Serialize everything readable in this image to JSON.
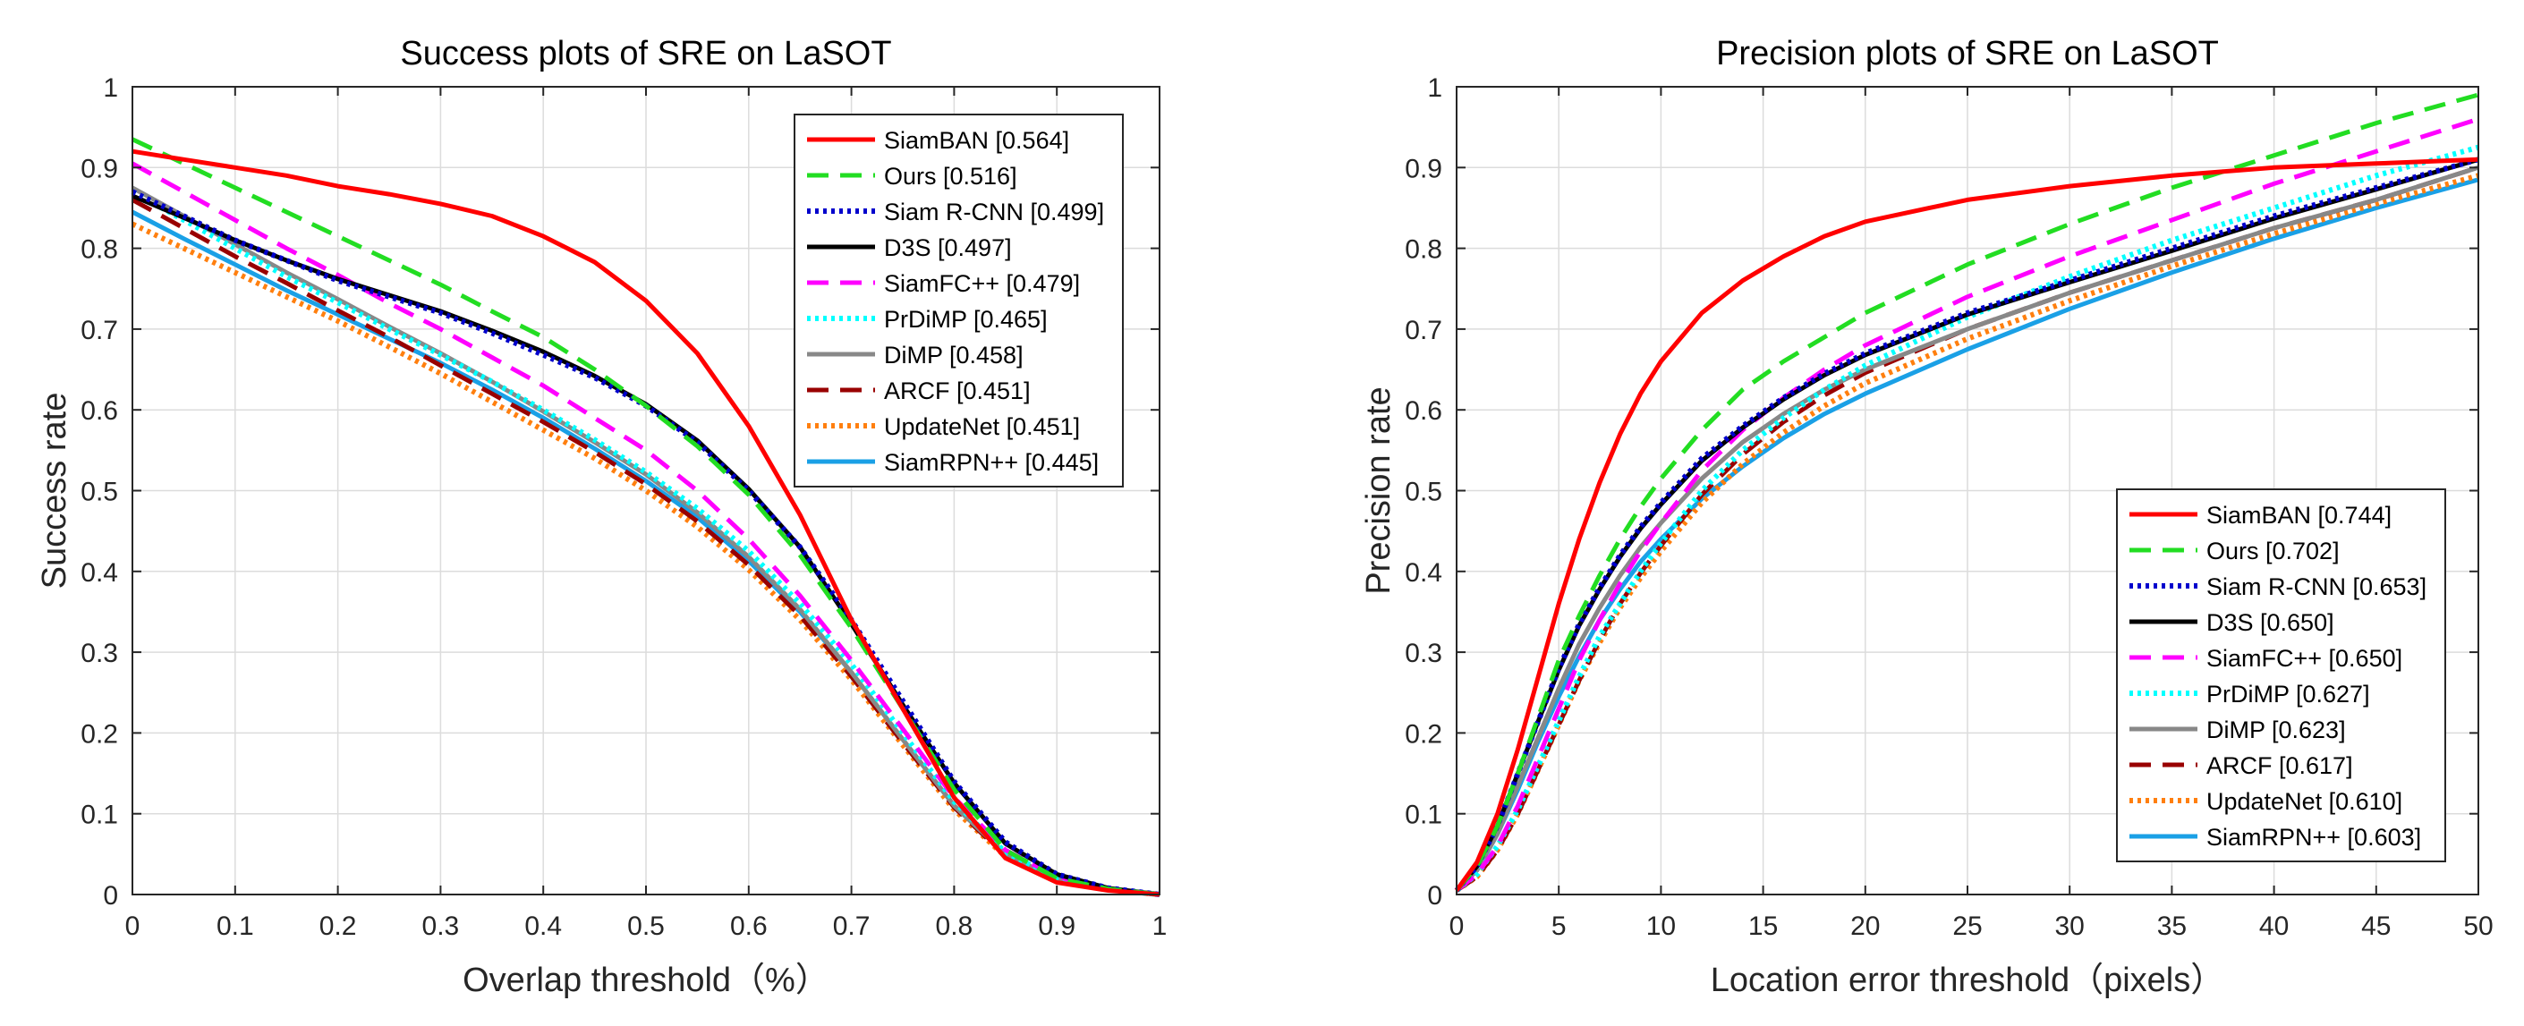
{
  "chart_data": [
    {
      "type": "line",
      "title": "Success plots of SRE on LaSOT",
      "xlabel": "Overlap threshold（%）",
      "ylabel": "Success rate",
      "xlim": [
        0,
        1
      ],
      "ylim": [
        0,
        1
      ],
      "xticks": [
        "0",
        "0.1",
        "0.2",
        "0.3",
        "0.4",
        "0.5",
        "0.6",
        "0.7",
        "0.8",
        "0.9",
        "1"
      ],
      "yticks": [
        "0",
        "0.1",
        "0.2",
        "0.3",
        "0.4",
        "0.5",
        "0.6",
        "0.7",
        "0.8",
        "0.9",
        "1"
      ],
      "grid": true,
      "legend_position": "top-right",
      "x": [
        0,
        0.05,
        0.1,
        0.15,
        0.2,
        0.25,
        0.3,
        0.35,
        0.4,
        0.45,
        0.5,
        0.55,
        0.6,
        0.65,
        0.7,
        0.75,
        0.8,
        0.85,
        0.9,
        0.95,
        1
      ],
      "series": [
        {
          "name": "SiamBAN [0.564]",
          "color": "#ff0000",
          "dash": "solid",
          "values": [
            0.92,
            0.91,
            0.9,
            0.89,
            0.877,
            0.867,
            0.855,
            0.84,
            0.815,
            0.783,
            0.735,
            0.67,
            0.58,
            0.47,
            0.34,
            0.23,
            0.12,
            0.045,
            0.015,
            0.005,
            0
          ]
        },
        {
          "name": "Ours [0.516]",
          "color": "#22dd22",
          "dash": "dashed",
          "values": [
            0.935,
            0.905,
            0.875,
            0.845,
            0.815,
            0.785,
            0.755,
            0.722,
            0.69,
            0.65,
            0.605,
            0.555,
            0.495,
            0.42,
            0.33,
            0.23,
            0.13,
            0.055,
            0.02,
            0.007,
            0
          ]
        },
        {
          "name": "Siam R-CNN [0.499]",
          "color": "#0000cc",
          "dash": "dotted",
          "values": [
            0.87,
            0.84,
            0.81,
            0.785,
            0.76,
            0.74,
            0.72,
            0.695,
            0.668,
            0.64,
            0.605,
            0.56,
            0.5,
            0.43,
            0.34,
            0.24,
            0.14,
            0.065,
            0.025,
            0.008,
            0
          ]
        },
        {
          "name": "D3S [0.497]",
          "color": "#000000",
          "dash": "solid",
          "values": [
            0.865,
            0.838,
            0.81,
            0.785,
            0.762,
            0.742,
            0.722,
            0.698,
            0.672,
            0.642,
            0.607,
            0.562,
            0.502,
            0.43,
            0.335,
            0.235,
            0.138,
            0.063,
            0.025,
            0.008,
            0
          ]
        },
        {
          "name": "SiamFC++ [0.479]",
          "color": "#ff00ff",
          "dash": "dashed",
          "values": [
            0.905,
            0.87,
            0.835,
            0.8,
            0.767,
            0.732,
            0.7,
            0.665,
            0.63,
            0.59,
            0.55,
            0.5,
            0.44,
            0.37,
            0.29,
            0.205,
            0.12,
            0.055,
            0.022,
            0.007,
            0
          ]
        },
        {
          "name": "PrDiMP [0.465]",
          "color": "#00ffff",
          "dash": "dotted",
          "values": [
            0.87,
            0.835,
            0.8,
            0.765,
            0.733,
            0.7,
            0.668,
            0.635,
            0.6,
            0.563,
            0.523,
            0.478,
            0.425,
            0.36,
            0.285,
            0.2,
            0.115,
            0.052,
            0.02,
            0.006,
            0
          ]
        },
        {
          "name": "DiMP [0.458]",
          "color": "#888888",
          "dash": "solid",
          "values": [
            0.875,
            0.84,
            0.805,
            0.77,
            0.737,
            0.703,
            0.67,
            0.635,
            0.598,
            0.56,
            0.52,
            0.473,
            0.418,
            0.353,
            0.275,
            0.192,
            0.11,
            0.05,
            0.019,
            0.006,
            0
          ]
        },
        {
          "name": "ARCF [0.451]",
          "color": "#990000",
          "dash": "dashed",
          "values": [
            0.86,
            0.825,
            0.79,
            0.757,
            0.723,
            0.69,
            0.655,
            0.62,
            0.585,
            0.548,
            0.508,
            0.462,
            0.408,
            0.345,
            0.27,
            0.188,
            0.108,
            0.048,
            0.018,
            0.006,
            0
          ]
        },
        {
          "name": "UpdateNet [0.451]",
          "color": "#ff7f0e",
          "dash": "dotted",
          "values": [
            0.83,
            0.8,
            0.77,
            0.74,
            0.71,
            0.678,
            0.645,
            0.61,
            0.575,
            0.54,
            0.5,
            0.455,
            0.402,
            0.34,
            0.266,
            0.185,
            0.105,
            0.047,
            0.018,
            0.006,
            0
          ]
        },
        {
          "name": "SiamRPN++ [0.445]",
          "color": "#1aa0e6",
          "dash": "solid",
          "values": [
            0.845,
            0.812,
            0.78,
            0.748,
            0.718,
            0.688,
            0.658,
            0.625,
            0.59,
            0.552,
            0.512,
            0.467,
            0.413,
            0.35,
            0.275,
            0.192,
            0.11,
            0.05,
            0.019,
            0.006,
            0
          ]
        }
      ]
    },
    {
      "type": "line",
      "title": "Precision plots of SRE on LaSOT",
      "xlabel": "Location error threshold（pixels）",
      "ylabel": "Precision rate",
      "xlim": [
        0,
        50
      ],
      "ylim": [
        0,
        1
      ],
      "xticks": [
        "0",
        "5",
        "10",
        "15",
        "20",
        "25",
        "30",
        "35",
        "40",
        "45",
        "50"
      ],
      "yticks": [
        "0",
        "0.1",
        "0.2",
        "0.3",
        "0.4",
        "0.5",
        "0.6",
        "0.7",
        "0.8",
        "0.9",
        "1"
      ],
      "grid": true,
      "legend_position": "bottom-right",
      "x": [
        0,
        1,
        2,
        3,
        4,
        5,
        6,
        7,
        8,
        9,
        10,
        12,
        14,
        16,
        18,
        20,
        25,
        30,
        35,
        40,
        45,
        50
      ],
      "series": [
        {
          "name": "SiamBAN [0.744]",
          "color": "#ff0000",
          "dash": "solid",
          "values": [
            0.005,
            0.04,
            0.1,
            0.18,
            0.27,
            0.36,
            0.44,
            0.51,
            0.57,
            0.62,
            0.66,
            0.72,
            0.76,
            0.79,
            0.815,
            0.833,
            0.86,
            0.877,
            0.89,
            0.9,
            0.905,
            0.91
          ]
        },
        {
          "name": "Ours [0.702]",
          "color": "#22dd22",
          "dash": "dashed",
          "values": [
            0.005,
            0.035,
            0.085,
            0.15,
            0.22,
            0.29,
            0.345,
            0.395,
            0.44,
            0.48,
            0.515,
            0.575,
            0.625,
            0.66,
            0.69,
            0.72,
            0.78,
            0.83,
            0.875,
            0.915,
            0.955,
            0.99
          ]
        },
        {
          "name": "Siam R-CNN [0.653]",
          "color": "#0000cc",
          "dash": "dotted",
          "values": [
            0.005,
            0.035,
            0.085,
            0.15,
            0.215,
            0.28,
            0.335,
            0.38,
            0.42,
            0.455,
            0.485,
            0.54,
            0.58,
            0.615,
            0.645,
            0.67,
            0.72,
            0.76,
            0.8,
            0.84,
            0.875,
            0.91
          ]
        },
        {
          "name": "D3S [0.650]",
          "color": "#000000",
          "dash": "solid",
          "values": [
            0.005,
            0.035,
            0.085,
            0.15,
            0.215,
            0.278,
            0.333,
            0.378,
            0.418,
            0.453,
            0.483,
            0.537,
            0.578,
            0.613,
            0.643,
            0.668,
            0.718,
            0.758,
            0.797,
            0.837,
            0.873,
            0.91
          ]
        },
        {
          "name": "SiamFC++ [0.650]",
          "color": "#ff00ff",
          "dash": "dashed",
          "values": [
            0.005,
            0.025,
            0.06,
            0.11,
            0.17,
            0.23,
            0.29,
            0.34,
            0.385,
            0.425,
            0.46,
            0.525,
            0.575,
            0.615,
            0.65,
            0.68,
            0.74,
            0.79,
            0.835,
            0.88,
            0.92,
            0.96
          ]
        },
        {
          "name": "PrDiMP [0.627]",
          "color": "#00ffff",
          "dash": "dotted",
          "values": [
            0.005,
            0.025,
            0.06,
            0.105,
            0.16,
            0.215,
            0.27,
            0.32,
            0.36,
            0.4,
            0.435,
            0.5,
            0.55,
            0.59,
            0.625,
            0.655,
            0.715,
            0.765,
            0.81,
            0.85,
            0.89,
            0.925
          ]
        },
        {
          "name": "DiMP [0.623]",
          "color": "#888888",
          "dash": "solid",
          "values": [
            0.005,
            0.03,
            0.075,
            0.135,
            0.195,
            0.255,
            0.31,
            0.355,
            0.395,
            0.43,
            0.46,
            0.515,
            0.56,
            0.595,
            0.625,
            0.65,
            0.7,
            0.745,
            0.785,
            0.825,
            0.86,
            0.9
          ]
        },
        {
          "name": "ARCF [0.617]",
          "color": "#990000",
          "dash": "dashed",
          "values": [
            0.005,
            0.022,
            0.055,
            0.1,
            0.155,
            0.21,
            0.265,
            0.315,
            0.36,
            0.398,
            0.432,
            0.495,
            0.545,
            0.585,
            0.618,
            0.646,
            0.7,
            0.745,
            0.785,
            0.825,
            0.86,
            0.9
          ]
        },
        {
          "name": "UpdateNet [0.610]",
          "color": "#ff7f0e",
          "dash": "dotted",
          "values": [
            0.005,
            0.022,
            0.055,
            0.1,
            0.155,
            0.21,
            0.265,
            0.312,
            0.355,
            0.392,
            0.425,
            0.485,
            0.533,
            0.572,
            0.605,
            0.633,
            0.688,
            0.735,
            0.778,
            0.818,
            0.855,
            0.89
          ]
        },
        {
          "name": "SiamRPN++ [0.603]",
          "color": "#1aa0e6",
          "dash": "solid",
          "values": [
            0.005,
            0.03,
            0.075,
            0.13,
            0.19,
            0.245,
            0.295,
            0.34,
            0.378,
            0.412,
            0.44,
            0.49,
            0.53,
            0.565,
            0.595,
            0.62,
            0.675,
            0.725,
            0.77,
            0.812,
            0.85,
            0.885
          ]
        }
      ]
    }
  ]
}
